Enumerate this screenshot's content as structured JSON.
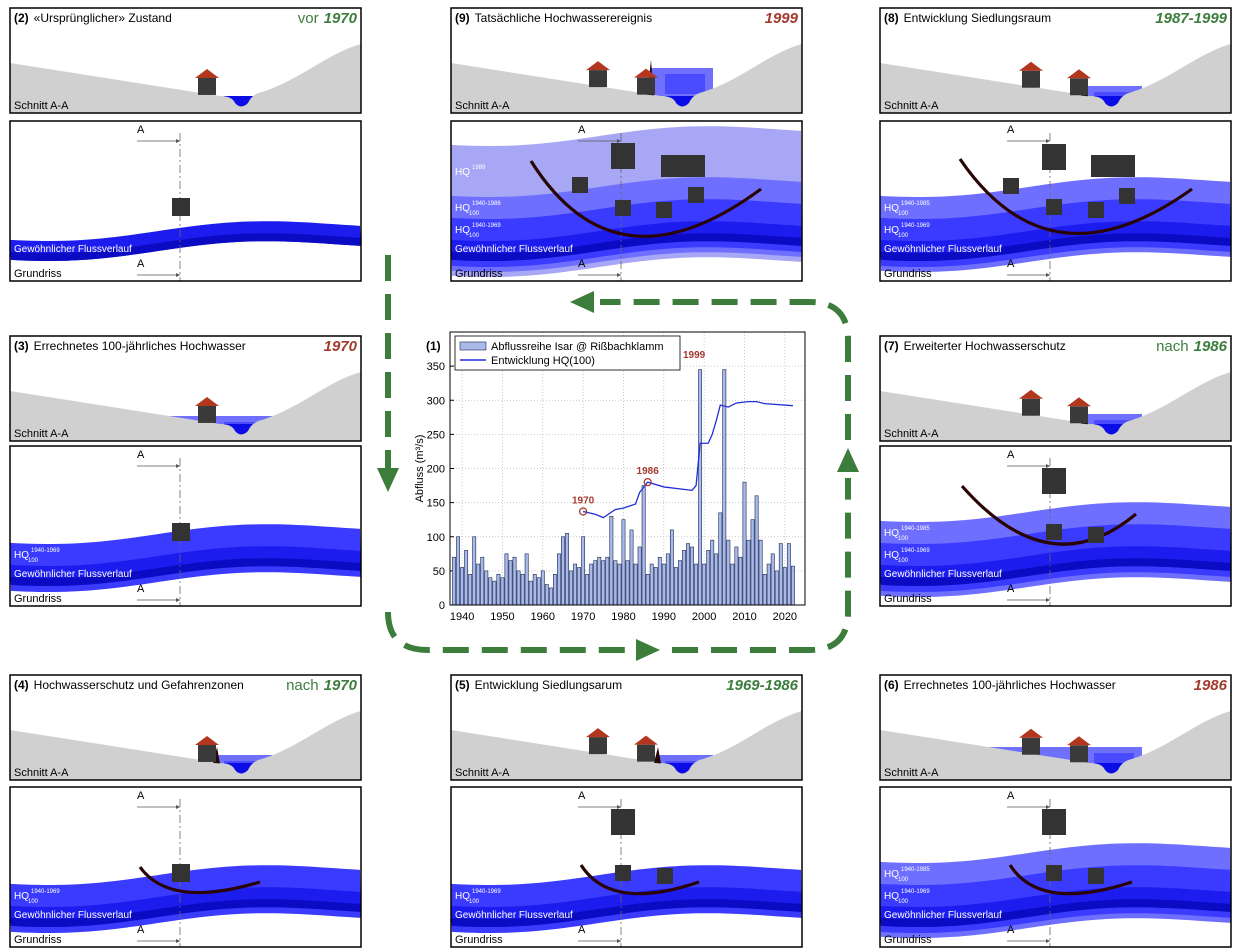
{
  "chart_data": {
    "type": "bar",
    "title": "(1)",
    "ylabel": "Abfluss (m³/s)",
    "x": [
      1938,
      1939,
      1940,
      1941,
      1942,
      1943,
      1944,
      1945,
      1946,
      1947,
      1948,
      1949,
      1950,
      1951,
      1952,
      1953,
      1954,
      1955,
      1956,
      1957,
      1958,
      1959,
      1960,
      1961,
      1962,
      1963,
      1964,
      1965,
      1966,
      1967,
      1968,
      1969,
      1970,
      1971,
      1972,
      1973,
      1974,
      1975,
      1976,
      1977,
      1978,
      1979,
      1980,
      1981,
      1982,
      1983,
      1984,
      1985,
      1986,
      1987,
      1988,
      1989,
      1990,
      1991,
      1992,
      1993,
      1994,
      1995,
      1996,
      1997,
      1998,
      1999,
      2000,
      2001,
      2002,
      2003,
      2004,
      2005,
      2006,
      2007,
      2008,
      2009,
      2010,
      2011,
      2012,
      2013,
      2014,
      2015,
      2016,
      2017,
      2018,
      2019,
      2020,
      2021,
      2022
    ],
    "series": [
      {
        "name": "Abflussreihe Isar @ Rißbachklamm",
        "color": "#a9b9ea",
        "values": [
          70,
          100,
          55,
          80,
          45,
          100,
          60,
          70,
          50,
          40,
          35,
          45,
          40,
          75,
          65,
          70,
          50,
          45,
          75,
          35,
          45,
          40,
          50,
          30,
          25,
          45,
          75,
          100,
          105,
          50,
          60,
          55,
          100,
          45,
          60,
          65,
          70,
          65,
          70,
          130,
          65,
          60,
          125,
          65,
          110,
          60,
          85,
          175,
          45,
          60,
          55,
          70,
          60,
          75,
          110,
          55,
          65,
          80,
          90,
          85,
          60,
          345,
          60,
          80,
          95,
          75,
          135,
          345,
          95,
          60,
          85,
          70,
          180,
          95,
          125,
          160,
          95,
          45,
          60,
          75,
          50,
          90,
          55,
          90,
          57
        ]
      },
      {
        "name": "Entwicklung HQ(100)",
        "color": "#1f2fd8",
        "type": "line",
        "x": [
          1970,
          1973,
          1975,
          1978,
          1980,
          1983,
          1984,
          1986,
          1990,
          1997,
          1998,
          1999,
          2001,
          2002,
          2003,
          2004,
          2006,
          2008,
          2011,
          2013,
          2015,
          2022
        ],
        "values": [
          137,
          133,
          128,
          140,
          142,
          148,
          165,
          180,
          173,
          168,
          175,
          237,
          237,
          250,
          270,
          293,
          290,
          296,
          298,
          298,
          295,
          292
        ]
      }
    ],
    "xlim": [
      1937,
      2025
    ],
    "ylim": [
      0,
      400
    ],
    "xticks": [
      1940,
      1950,
      1960,
      1970,
      1980,
      1990,
      2000,
      2010,
      2020
    ],
    "yticks": [
      0,
      50,
      100,
      150,
      200,
      250,
      300,
      350
    ],
    "grid": true,
    "annotations": [
      {
        "text": "1970",
        "x": 1970,
        "y": 137,
        "marker": true
      },
      {
        "text": "1986",
        "x": 1986,
        "y": 180,
        "marker": true
      },
      {
        "text": "1999",
        "x": 1999,
        "y": 362,
        "marker": false
      }
    ],
    "annotation_color": "#a33a30"
  },
  "panels": [
    {
      "number": "(2)",
      "title": "«Ursprünglicher» Zustand",
      "period_prefix": "vor",
      "period": "1970",
      "period_color": "#3d7d3d",
      "section_label": "Schnitt A-A",
      "plan_label": "Grundriss",
      "river_label": "Gewöhnlicher Flussverlauf",
      "a_labels": [
        "A",
        "A"
      ],
      "hq_labels": []
    },
    {
      "number": "(9)",
      "title": "Tatsächliche Hochwasserereignis",
      "period": "1999",
      "period_color": "#a33a30",
      "section_label": "Schnitt A-A",
      "plan_label": "Grundriss",
      "river_label": "Gewöhnlicher Flussverlauf",
      "a_labels": [
        "A",
        "A"
      ],
      "hq_labels": [
        {
          "main": "HQ",
          "sup": "1999"
        },
        {
          "main": "HQ",
          "sup": "1940-1986",
          "sub": "100"
        },
        {
          "main": "HQ",
          "sup": "1940-1969",
          "sub": "100"
        }
      ]
    },
    {
      "number": "(8)",
      "title": "Entwicklung Siedlungsraum",
      "period": "1987-1999",
      "period_color": "#3d7d3d",
      "section_label": "Schnitt A-A",
      "plan_label": "Grundriss",
      "river_label": "Gewöhnlicher Flussverlauf",
      "a_labels": [
        "A",
        "A"
      ],
      "hq_labels": [
        {
          "main": "HQ",
          "sup": "1940-1985",
          "sub": "100"
        },
        {
          "main": "HQ",
          "sup": "1940-1969",
          "sub": "100"
        }
      ]
    },
    {
      "number": "(3)",
      "title": "Errechnetes 100-jährliches Hochwasser",
      "period": "1970",
      "period_color": "#a33a30",
      "section_label": "Schnitt A-A",
      "plan_label": "Grundriss",
      "river_label": "Gewöhnlicher Flussverlauf",
      "a_labels": [
        "A",
        "A"
      ],
      "hq_labels": [
        {
          "main": "HQ",
          "sup": "1940-1969",
          "sub": "100"
        }
      ]
    },
    {
      "number": "(7)",
      "title": "Erweiterter Hochwasserschutz",
      "period_prefix": "nach",
      "period": "1986",
      "period_color": "#3d7d3d",
      "section_label": "Schnitt A-A",
      "plan_label": "Grundriss",
      "river_label": "Gewöhnlicher Flussverlauf",
      "a_labels": [
        "A",
        "A"
      ],
      "hq_labels": [
        {
          "main": "HQ",
          "sup": "1940-1985",
          "sub": "100"
        },
        {
          "main": "HQ",
          "sup": "1940-1969",
          "sub": "100"
        }
      ]
    },
    {
      "number": "(4)",
      "title": "Hochwasserschutz  und Gefahrenzonen",
      "period_prefix": "nach",
      "period": "1970",
      "period_color": "#3d7d3d",
      "section_label": "Schnitt A-A",
      "plan_label": "Grundriss",
      "river_label": "Gewöhnlicher Flussverlauf",
      "a_labels": [
        "A",
        "A"
      ],
      "hq_labels": [
        {
          "main": "HQ",
          "sup": "1940-1969",
          "sub": "100"
        }
      ]
    },
    {
      "number": "(5)",
      "title": "Entwicklung Siedlungsarum",
      "period": "1969-1986",
      "period_color": "#3d7d3d",
      "section_label": "Schnitt A-A",
      "plan_label": "Grundriss",
      "river_label": "Gewöhnlicher Flussverlauf",
      "a_labels": [
        "A",
        "A"
      ],
      "hq_labels": [
        {
          "main": "HQ",
          "sup": "1940-1969",
          "sub": "100"
        }
      ]
    },
    {
      "number": "(6)",
      "title": "Errechnetes 100-jährliches Hochwasser",
      "period": "1986",
      "period_color": "#a33a30",
      "section_label": "Schnitt A-A",
      "plan_label": "Grundriss",
      "river_label": "Gewöhnlicher Flussverlauf",
      "a_labels": [
        "A",
        "A"
      ],
      "hq_labels": [
        {
          "main": "HQ",
          "sup": "1940-1985",
          "sub": "100"
        },
        {
          "main": "HQ",
          "sup": "1940-1969",
          "sub": "100"
        }
      ]
    }
  ]
}
